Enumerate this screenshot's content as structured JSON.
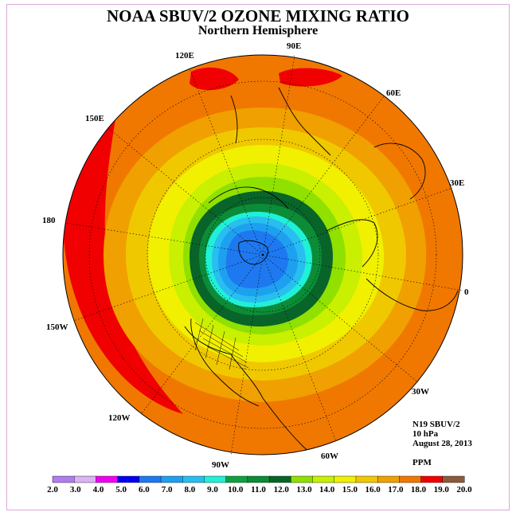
{
  "title": "NOAA SBUV/2 OZONE MIXING RATIO",
  "subtitle": "Northern Hemisphere",
  "info": {
    "satellite": "N19 SBUV/2",
    "level": "10 hPa",
    "date": "August 28, 2013",
    "units": "PPM"
  },
  "longitude_labels": [
    "0",
    "30E",
    "60E",
    "90E",
    "120E",
    "150E",
    "180",
    "150W",
    "120W",
    "90W",
    "60W",
    "30W"
  ],
  "colorbar": {
    "ticks": [
      "2.0",
      "3.0",
      "4.0",
      "5.0",
      "6.0",
      "7.0",
      "8.0",
      "9.0",
      "10.0",
      "11.0",
      "12.0",
      "13.0",
      "14.0",
      "15.0",
      "16.0",
      "17.0",
      "18.0",
      "19.0",
      "20.0"
    ],
    "colors": [
      "#b07cf0",
      "#dcb4f4",
      "#f000f0",
      "#0000f0",
      "#1e78f0",
      "#1ea0f0",
      "#28bef0",
      "#20f0d8",
      "#10a040",
      "#0c8c38",
      "#086428",
      "#90e000",
      "#c8f000",
      "#f0f000",
      "#f0c800",
      "#f0a000",
      "#f07800",
      "#f00000",
      "#8c5a3c"
    ]
  },
  "map_data": {
    "projection": "north polar stereographic",
    "field": "ozone mixing ratio",
    "contour_bands_ppm": [
      {
        "min": 19.0,
        "max": 20.0,
        "color": "#f00000"
      },
      {
        "min": 18.0,
        "max": 19.0,
        "color": "#f07800"
      },
      {
        "min": 17.0,
        "max": 18.0,
        "color": "#f0a000"
      },
      {
        "min": 16.0,
        "max": 17.0,
        "color": "#f0c800"
      },
      {
        "min": 15.0,
        "max": 16.0,
        "color": "#f0f000"
      },
      {
        "min": 14.0,
        "max": 15.0,
        "color": "#c8f000"
      },
      {
        "min": 13.0,
        "max": 14.0,
        "color": "#90e000"
      },
      {
        "min": 12.0,
        "max": 13.0,
        "color": "#086428"
      },
      {
        "min": 11.0,
        "max": 12.0,
        "color": "#0c8c38"
      },
      {
        "min": 9.0,
        "max": 10.0,
        "color": "#20f0d8"
      },
      {
        "min": 8.0,
        "max": 9.0,
        "color": "#28bef0"
      },
      {
        "min": 7.0,
        "max": 8.0,
        "color": "#1ea0f0"
      },
      {
        "min": 6.0,
        "max": 7.0,
        "color": "#1e78f0"
      }
    ]
  }
}
